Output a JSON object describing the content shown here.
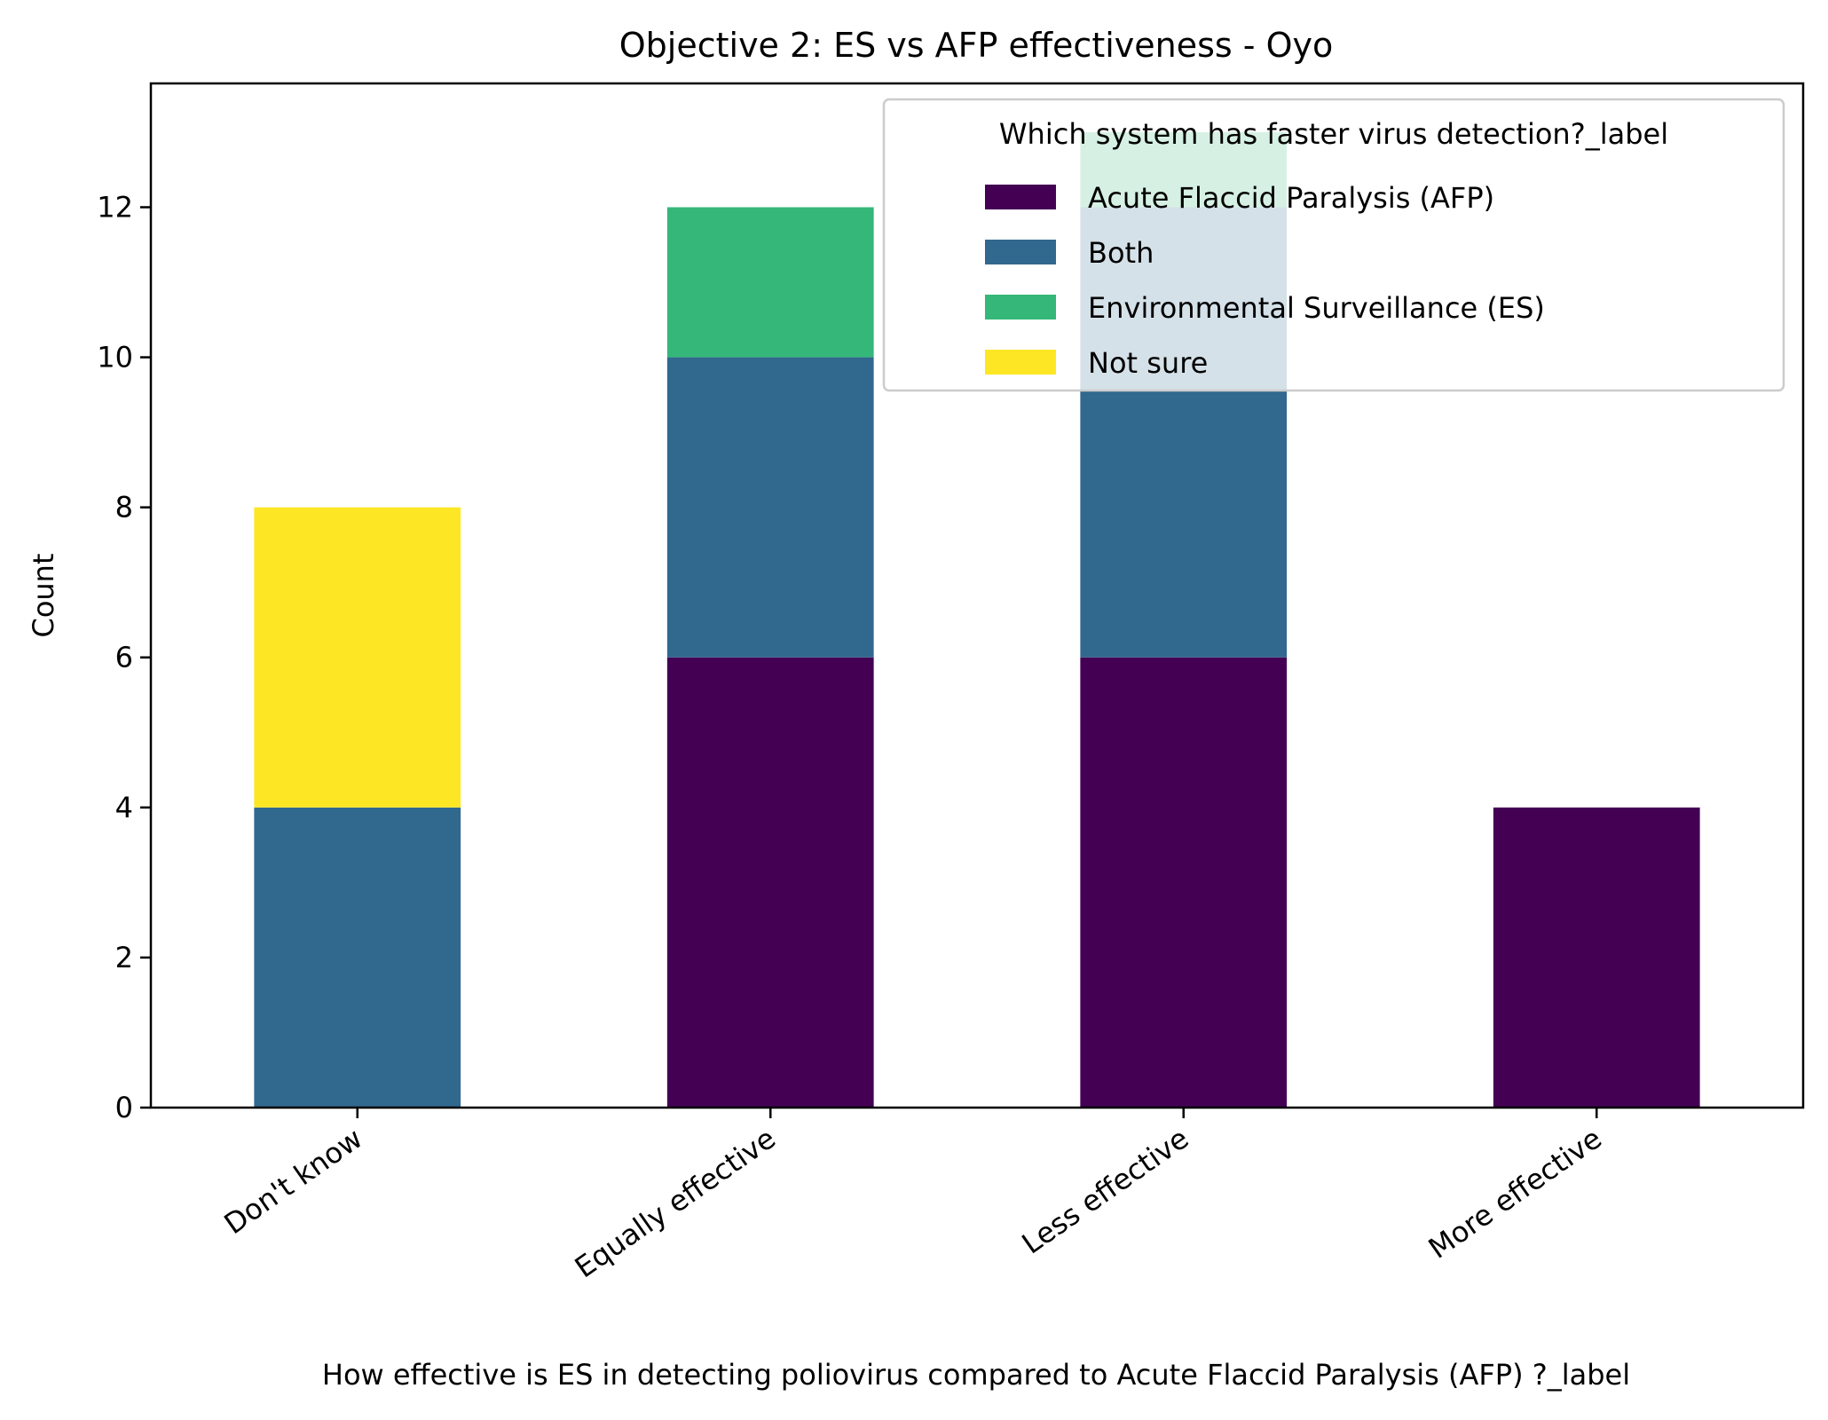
{
  "chart_data": {
    "type": "bar",
    "stacked": true,
    "title": "Objective 2: ES vs AFP effectiveness - Oyo",
    "xlabel": "How effective is ES in detecting poliovirus compared to  Acute Flaccid Paralysis (AFP) ?_label",
    "ylabel": "Count",
    "categories": [
      "Don't know",
      "Equally effective",
      "Less effective",
      "More effective"
    ],
    "series": [
      {
        "name": "Acute Flaccid Paralysis (AFP)",
        "color": "#440154",
        "values": [
          0,
          6,
          6,
          4
        ]
      },
      {
        "name": "Both",
        "color": "#31688e",
        "values": [
          4,
          4,
          6,
          0
        ]
      },
      {
        "name": "Environmental Surveillance (ES)",
        "color": "#35b779",
        "values": [
          0,
          2,
          1,
          0
        ]
      },
      {
        "name": "Not sure",
        "color": "#fde725",
        "values": [
          4,
          0,
          0,
          0
        ]
      }
    ],
    "ylim": [
      0,
      13.65
    ],
    "yticks": [
      0,
      2,
      4,
      6,
      8,
      10,
      12
    ],
    "legend": {
      "title": "Which system has faster virus detection?_label",
      "placement": "top-right"
    },
    "grid": false
  }
}
